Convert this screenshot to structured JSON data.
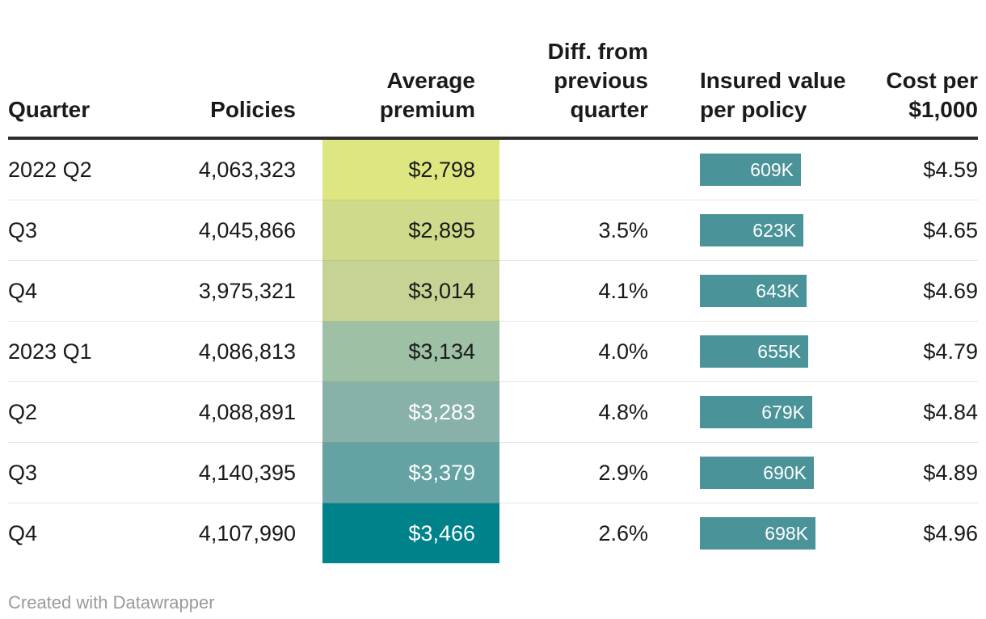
{
  "chart_data": {
    "type": "table",
    "title": "",
    "columns": [
      "Quarter",
      "Policies",
      "Average premium",
      "Diff. from previous quarter",
      "Insured value per policy",
      "Cost per $1,000"
    ],
    "rows": [
      [
        "2022 Q2",
        4063323,
        2798,
        null,
        609000,
        4.59
      ],
      [
        "Q3",
        4045866,
        2895,
        3.5,
        623000,
        4.65
      ],
      [
        "Q4",
        3975321,
        3014,
        4.1,
        643000,
        4.69
      ],
      [
        "2023 Q1",
        4086813,
        3134,
        4.0,
        655000,
        4.79
      ],
      [
        "Q2",
        4088891,
        3283,
        4.8,
        679000,
        4.84
      ],
      [
        "Q3",
        4140395,
        3379,
        2.9,
        690000,
        4.89
      ],
      [
        "Q4",
        4107990,
        3466,
        2.6,
        698000,
        4.96
      ]
    ],
    "notes": {
      "premium_column_style": "heatmap from yellow-green to teal",
      "insured_column_style": "horizontal bars with value labels in thousands (K)"
    }
  },
  "table": {
    "headers": [
      {
        "label": "Quarter"
      },
      {
        "label": "Policies"
      },
      {
        "label": "Average premium"
      },
      {
        "label": "Diff. from previous quarter"
      },
      {
        "label": "Insured value per policy"
      },
      {
        "label": "Cost per $1,000"
      }
    ],
    "bar_color": "#499399",
    "bar_label_color": "#ffffff",
    "rows": [
      {
        "quarter": "2022 Q2",
        "policies": "4,063,323",
        "premium": "$2,798",
        "premium_bg": "#dde680",
        "premium_text_color": "#1a1a1a",
        "diff": "",
        "insured_bar_label": "609K",
        "insured_value_thousands": 609,
        "cost": "$4.59"
      },
      {
        "quarter": "Q3",
        "policies": "4,045,866",
        "premium": "$2,895",
        "premium_bg": "#cfdb8a",
        "premium_text_color": "#1a1a1a",
        "diff": "3.5%",
        "insured_bar_label": "623K",
        "insured_value_thousands": 623,
        "cost": "$4.65"
      },
      {
        "quarter": "Q4",
        "policies": "3,975,321",
        "premium": "$3,014",
        "premium_bg": "#c5d494",
        "premium_text_color": "#1a1a1a",
        "diff": "4.1%",
        "insured_bar_label": "643K",
        "insured_value_thousands": 643,
        "cost": "$4.69"
      },
      {
        "quarter": "2023 Q1",
        "policies": "4,086,813",
        "premium": "$3,134",
        "premium_bg": "#9ec0a5",
        "premium_text_color": "#1a1a1a",
        "diff": "4.0%",
        "insured_bar_label": "655K",
        "insured_value_thousands": 655,
        "cost": "$4.79"
      },
      {
        "quarter": "Q2",
        "policies": "4,088,891",
        "premium": "$3,283",
        "premium_bg": "#87b1a9",
        "premium_text_color": "#ffffff",
        "diff": "4.8%",
        "insured_bar_label": "679K",
        "insured_value_thousands": 679,
        "cost": "$4.84"
      },
      {
        "quarter": "Q3",
        "policies": "4,140,395",
        "premium": "$3,379",
        "premium_bg": "#64a2a4",
        "premium_text_color": "#ffffff",
        "diff": "2.9%",
        "insured_bar_label": "690K",
        "insured_value_thousands": 690,
        "cost": "$4.89"
      },
      {
        "quarter": "Q4",
        "policies": "4,107,990",
        "premium": "$3,466",
        "premium_bg": "#00828b",
        "premium_text_color": "#ffffff",
        "diff": "2.6%",
        "insured_bar_label": "698K",
        "insured_value_thousands": 698,
        "cost": "$4.96"
      }
    ]
  },
  "footer": {
    "credit": "Created with Datawrapper"
  }
}
